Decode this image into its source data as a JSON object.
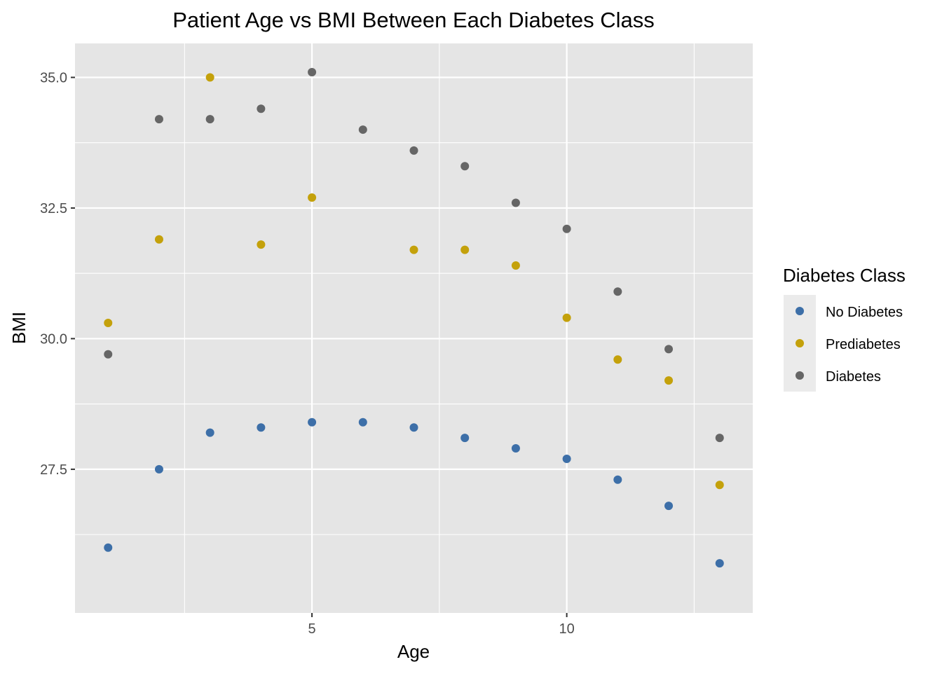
{
  "chart_data": {
    "type": "scatter",
    "title": "Patient Age vs BMI Between Each Diabetes Class",
    "xlabel": "Age",
    "ylabel": "BMI",
    "xlim": [
      0.35,
      13.65
    ],
    "ylim": [
      24.75,
      35.65
    ],
    "x_ticks": [
      5,
      10
    ],
    "x_tick_labels": [
      "5",
      "10"
    ],
    "x_minor_ticks": [
      2.5,
      7.5,
      12.5
    ],
    "y_ticks": [
      27.5,
      30.0,
      32.5,
      35.0
    ],
    "y_tick_labels": [
      "27.5",
      "30.0",
      "32.5",
      "35.0"
    ],
    "y_minor_ticks": [
      26.25,
      28.75,
      31.25,
      33.75
    ],
    "grid": true,
    "panel_background": "#e5e5e5",
    "grid_color": "#ffffff",
    "legend": {
      "title": "Diabetes Class",
      "placement": "right",
      "key_background": "#ebebeb"
    },
    "series": [
      {
        "name": "No Diabetes",
        "color": "#3d6fa8",
        "x": [
          1,
          2,
          3,
          4,
          5,
          6,
          7,
          8,
          9,
          10,
          11,
          12,
          13
        ],
        "y": [
          26.0,
          27.5,
          28.2,
          28.3,
          28.4,
          28.4,
          28.3,
          28.1,
          27.9,
          27.7,
          27.3,
          26.8,
          25.7
        ]
      },
      {
        "name": "Prediabetes",
        "color": "#c4a10b",
        "x": [
          1,
          2,
          3,
          4,
          5,
          7,
          8,
          9,
          10,
          11,
          12,
          13
        ],
        "y": [
          30.3,
          31.9,
          35.0,
          31.8,
          32.7,
          31.7,
          31.7,
          31.4,
          30.4,
          29.6,
          29.2,
          27.2
        ]
      },
      {
        "name": "Diabetes",
        "color": "#666666",
        "x": [
          1,
          2,
          3,
          4,
          5,
          6,
          7,
          8,
          9,
          10,
          11,
          12,
          13
        ],
        "y": [
          29.7,
          34.2,
          34.2,
          34.4,
          35.1,
          34.0,
          33.6,
          33.3,
          32.6,
          32.1,
          30.9,
          29.8,
          28.1
        ]
      }
    ]
  }
}
